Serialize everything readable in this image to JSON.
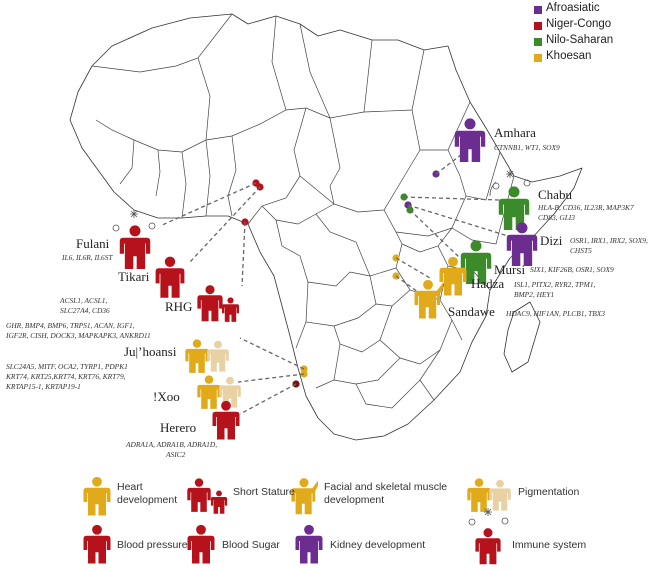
{
  "colors": {
    "afroasiatic": "#6b2d8f",
    "niger_congo": "#b5121b",
    "nilo_saharan": "#3c8b2a",
    "khoesan": "#e0aa1b",
    "herero_dot": "#7a1212"
  },
  "legend": [
    {
      "label": "Afroasiatic",
      "color": "#6b2d8f"
    },
    {
      "label": "Niger-Congo",
      "color": "#b5121b"
    },
    {
      "label": "Nilo-Saharan",
      "color": "#3c8b2a"
    },
    {
      "label": "Khoesan",
      "color": "#e0aa1b"
    }
  ],
  "populations": [
    {
      "id": "amhara",
      "name": "Amhara",
      "genes": [
        "CTNNB1, WT1, SOX9"
      ],
      "family": "Afroasiatic",
      "icon": "kidney-development"
    },
    {
      "id": "chabu",
      "name": "Chabu",
      "genes": [
        "HLA-B, CD36, IL23R, MAP3K7",
        "CD83, GLI3"
      ],
      "family": "Nilo-Saharan",
      "icon": "immune-system"
    },
    {
      "id": "dizi",
      "name": "Dizi",
      "genes": [
        "OSR1, IRX1, IRX2, SOX9,",
        "CHST5"
      ],
      "family": "Afroasiatic",
      "icon": "kidney-development"
    },
    {
      "id": "mursi",
      "name": "Mursi",
      "genes": [
        "SIX1, KIF26B, OSR1, SOX9"
      ],
      "family": "Nilo-Saharan",
      "icon": "kidney-development"
    },
    {
      "id": "hadza",
      "name": "Hadza",
      "genes": [
        "ISL1, PITX2, RYR2, TPM1,",
        "BMP2, HEY1"
      ],
      "family": "Khoesan",
      "icon": "heart-development"
    },
    {
      "id": "sandawe",
      "name": "Sandawe",
      "genes": [
        "HDAC9, HIF1AN, PLCB1, TBX3"
      ],
      "family": "Khoesan",
      "icon": "facial-and-skeletal-muscle-development"
    },
    {
      "id": "fulani",
      "name": "Fulani",
      "genes": [
        "IL6, IL6R, IL6ST"
      ],
      "family": "Niger-Congo",
      "icon": "immune-system"
    },
    {
      "id": "tikari",
      "name": "Tikari",
      "genes": [
        "ACSL1, ACSL1,",
        "SLC27A4, CD36"
      ],
      "family": "Niger-Congo",
      "icon": "blood-sugar"
    },
    {
      "id": "rhg",
      "name": "RHG",
      "genes": [
        "GHR, BMP4, BMP6, TRPS1, ACAN, IGF1,",
        "IGF2R, CISH, DOCK3, MAPKAPK3, ANKRD11"
      ],
      "family": "Niger-Congo",
      "icon": "short-stature"
    },
    {
      "id": "juhoansi",
      "name": "Ju|’hoansi",
      "genes": [
        "SLC24A5, MITF, OCA2, TYRP1, PDPK1",
        "KRT74, KRT25,KRT74, KRT76, KRT79,",
        "KRTAP15-1, KRTAP19-1"
      ],
      "family": "Khoesan",
      "icon": "pigmentation"
    },
    {
      "id": "xoo",
      "name": "!Xoo",
      "genes": [],
      "family": "Khoesan",
      "icon": "pigmentation"
    },
    {
      "id": "herero",
      "name": "Herero",
      "genes": [
        "ADRA1A, ADRA1B, ADRA1D,",
        "ASIC2"
      ],
      "family": "Niger-Congo",
      "icon": "blood-pressure"
    }
  ],
  "key": [
    {
      "id": "heart",
      "line1": "Heart",
      "line2": "development",
      "color": "#e0aa1b"
    },
    {
      "id": "short",
      "line1": "Short Stature",
      "line2": "",
      "color": "#b5121b"
    },
    {
      "id": "facial",
      "line1": "Facial and skeletal muscle",
      "line2": "development",
      "color": "#e0aa1b"
    },
    {
      "id": "pigment",
      "line1": "Pigmentation",
      "line2": "",
      "color": "#e0aa1b"
    },
    {
      "id": "bp",
      "line1": "Blood pressure",
      "line2": "",
      "color": "#b5121b"
    },
    {
      "id": "sugar",
      "line1": "Blood Sugar",
      "line2": "",
      "color": "#b5121b"
    },
    {
      "id": "kidney",
      "line1": "Kidney development",
      "line2": "",
      "color": "#6b2d8f"
    },
    {
      "id": "immune",
      "line1": "Immune system",
      "line2": "",
      "color": "#b5121b"
    }
  ]
}
